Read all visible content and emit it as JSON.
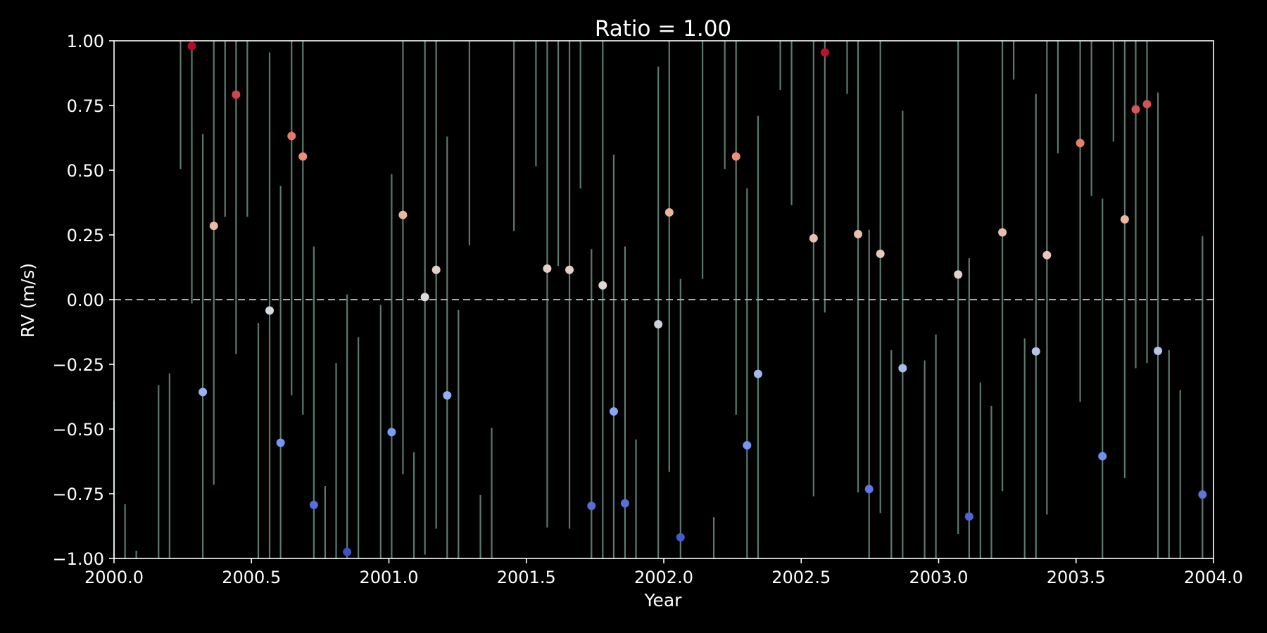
{
  "chart_data": {
    "type": "scatter",
    "title": "Ratio = 1.00",
    "xlabel": "Year",
    "ylabel": "RV (m/s)",
    "xlim": [
      2000.0,
      2004.0
    ],
    "ylim": [
      -1.0,
      1.0
    ],
    "xticks": [
      "2000.0",
      "2000.5",
      "2001.0",
      "2001.5",
      "2002.0",
      "2002.5",
      "2003.0",
      "2003.5",
      "2004.0"
    ],
    "yticks": [
      "−1.00",
      "−0.75",
      "−0.50",
      "−0.25",
      "0.00",
      "0.25",
      "0.50",
      "0.75",
      "1.00"
    ],
    "zero_line": true,
    "colors": {
      "background": "#000000",
      "axes": "#ffffff",
      "errorbar": "#5b7a6e",
      "zero_line": "#aaaaaa",
      "colormap": "coolwarm"
    },
    "points": [
      {
        "x": 2000.283,
        "y": 0.98
      },
      {
        "x": 2000.323,
        "y": -0.357
      },
      {
        "x": 2000.363,
        "y": 0.285
      },
      {
        "x": 2000.444,
        "y": 0.792
      },
      {
        "x": 2000.566,
        "y": -0.042
      },
      {
        "x": 2000.606,
        "y": -0.553
      },
      {
        "x": 2000.646,
        "y": 0.632
      },
      {
        "x": 2000.687,
        "y": 0.553
      },
      {
        "x": 2000.727,
        "y": -0.793
      },
      {
        "x": 2000.848,
        "y": -0.975
      },
      {
        "x": 2001.01,
        "y": -0.512
      },
      {
        "x": 2001.051,
        "y": 0.327
      },
      {
        "x": 2001.131,
        "y": 0.01
      },
      {
        "x": 2001.172,
        "y": 0.115
      },
      {
        "x": 2001.212,
        "y": -0.37
      },
      {
        "x": 2001.576,
        "y": 0.12
      },
      {
        "x": 2001.657,
        "y": 0.115
      },
      {
        "x": 2001.737,
        "y": -0.797
      },
      {
        "x": 2001.778,
        "y": 0.055
      },
      {
        "x": 2001.818,
        "y": -0.432
      },
      {
        "x": 2001.859,
        "y": -0.787
      },
      {
        "x": 2001.98,
        "y": -0.095
      },
      {
        "x": 2002.02,
        "y": 0.337
      },
      {
        "x": 2002.061,
        "y": -0.918
      },
      {
        "x": 2002.263,
        "y": 0.553
      },
      {
        "x": 2002.303,
        "y": -0.563
      },
      {
        "x": 2002.343,
        "y": -0.287
      },
      {
        "x": 2002.545,
        "y": 0.237
      },
      {
        "x": 2002.586,
        "y": 0.955
      },
      {
        "x": 2002.707,
        "y": 0.253
      },
      {
        "x": 2002.747,
        "y": -0.732
      },
      {
        "x": 2002.788,
        "y": 0.177
      },
      {
        "x": 2002.869,
        "y": -0.265
      },
      {
        "x": 2003.071,
        "y": 0.097
      },
      {
        "x": 2003.111,
        "y": -0.838
      },
      {
        "x": 2003.232,
        "y": 0.26
      },
      {
        "x": 2003.354,
        "y": -0.2
      },
      {
        "x": 2003.394,
        "y": 0.172
      },
      {
        "x": 2003.515,
        "y": 0.605
      },
      {
        "x": 2003.596,
        "y": -0.605
      },
      {
        "x": 2003.677,
        "y": 0.31
      },
      {
        "x": 2003.717,
        "y": 0.735
      },
      {
        "x": 2003.758,
        "y": 0.755
      },
      {
        "x": 2003.798,
        "y": -0.198
      },
      {
        "x": 2003.96,
        "y": -0.753
      }
    ],
    "errorbars": [
      {
        "x": 2000.0,
        "low": -1.0,
        "high": -0.39
      },
      {
        "x": 2000.04,
        "low": -1.0,
        "high": -0.79
      },
      {
        "x": 2000.081,
        "low": -1.0,
        "high": -0.97
      },
      {
        "x": 2000.162,
        "low": -1.0,
        "high": -0.33
      },
      {
        "x": 2000.202,
        "low": -1.0,
        "high": -0.285
      },
      {
        "x": 2000.242,
        "low": 0.505,
        "high": 1.0
      },
      {
        "x": 2000.283,
        "low": -0.015,
        "high": 1.0
      },
      {
        "x": 2000.323,
        "low": -1.0,
        "high": 0.64
      },
      {
        "x": 2000.363,
        "low": -0.715,
        "high": 1.0
      },
      {
        "x": 2000.404,
        "low": 0.32,
        "high": 1.0
      },
      {
        "x": 2000.444,
        "low": -0.21,
        "high": 1.0
      },
      {
        "x": 2000.485,
        "low": 0.32,
        "high": 1.0
      },
      {
        "x": 2000.525,
        "low": -1.0,
        "high": -0.09
      },
      {
        "x": 2000.566,
        "low": -1.0,
        "high": 0.955
      },
      {
        "x": 2000.606,
        "low": -1.0,
        "high": 0.44
      },
      {
        "x": 2000.646,
        "low": -0.37,
        "high": 1.0
      },
      {
        "x": 2000.687,
        "low": -0.445,
        "high": 1.0
      },
      {
        "x": 2000.727,
        "low": -1.0,
        "high": 0.205
      },
      {
        "x": 2000.768,
        "low": -1.0,
        "high": -0.72
      },
      {
        "x": 2000.808,
        "low": -1.0,
        "high": -0.245
      },
      {
        "x": 2000.848,
        "low": -1.0,
        "high": 0.02
      },
      {
        "x": 2000.889,
        "low": -1.0,
        "high": -0.145
      },
      {
        "x": 2000.97,
        "low": -1.0,
        "high": -0.02
      },
      {
        "x": 2001.01,
        "low": -1.0,
        "high": 0.485
      },
      {
        "x": 2001.051,
        "low": -0.675,
        "high": 1.0
      },
      {
        "x": 2001.091,
        "low": -1.0,
        "high": -0.59
      },
      {
        "x": 2001.131,
        "low": -0.985,
        "high": 1.0
      },
      {
        "x": 2001.172,
        "low": -0.885,
        "high": 1.0
      },
      {
        "x": 2001.212,
        "low": -1.0,
        "high": 0.63
      },
      {
        "x": 2001.253,
        "low": -1.0,
        "high": -0.04
      },
      {
        "x": 2001.293,
        "low": 0.21,
        "high": 1.0
      },
      {
        "x": 2001.333,
        "low": -1.0,
        "high": -0.755
      },
      {
        "x": 2001.374,
        "low": -1.0,
        "high": -0.495
      },
      {
        "x": 2001.455,
        "low": 0.265,
        "high": 1.0
      },
      {
        "x": 2001.535,
        "low": 0.515,
        "high": 1.0
      },
      {
        "x": 2001.576,
        "low": -0.88,
        "high": 1.0
      },
      {
        "x": 2001.616,
        "low": 0.13,
        "high": 1.0
      },
      {
        "x": 2001.657,
        "low": -0.885,
        "high": 1.0
      },
      {
        "x": 2001.697,
        "low": 0.43,
        "high": 1.0
      },
      {
        "x": 2001.737,
        "low": -1.0,
        "high": 0.195
      },
      {
        "x": 2001.778,
        "low": -1.0,
        "high": 1.0
      },
      {
        "x": 2001.818,
        "low": -1.0,
        "high": 0.56
      },
      {
        "x": 2001.859,
        "low": -1.0,
        "high": 0.205
      },
      {
        "x": 2001.899,
        "low": -1.0,
        "high": -0.54
      },
      {
        "x": 2001.98,
        "low": -1.0,
        "high": 0.9
      },
      {
        "x": 2002.02,
        "low": -0.665,
        "high": 1.0
      },
      {
        "x": 2002.061,
        "low": -1.0,
        "high": 0.08
      },
      {
        "x": 2002.141,
        "low": 0.08,
        "high": 1.0
      },
      {
        "x": 2002.182,
        "low": -1.0,
        "high": -0.84
      },
      {
        "x": 2002.222,
        "low": 0.505,
        "high": 1.0
      },
      {
        "x": 2002.263,
        "low": -0.445,
        "high": 1.0
      },
      {
        "x": 2002.303,
        "low": -1.0,
        "high": 0.43
      },
      {
        "x": 2002.343,
        "low": -1.0,
        "high": 0.71
      },
      {
        "x": 2002.424,
        "low": 0.81,
        "high": 1.0
      },
      {
        "x": 2002.465,
        "low": 0.365,
        "high": 1.0
      },
      {
        "x": 2002.545,
        "low": -0.76,
        "high": 1.0
      },
      {
        "x": 2002.586,
        "low": -0.05,
        "high": 1.0
      },
      {
        "x": 2002.667,
        "low": 0.795,
        "high": 1.0
      },
      {
        "x": 2002.707,
        "low": -0.745,
        "high": 1.0
      },
      {
        "x": 2002.747,
        "low": -1.0,
        "high": 0.27
      },
      {
        "x": 2002.788,
        "low": -0.825,
        "high": 1.0
      },
      {
        "x": 2002.828,
        "low": -1.0,
        "high": -0.195
      },
      {
        "x": 2002.869,
        "low": -1.0,
        "high": 0.73
      },
      {
        "x": 2002.949,
        "low": -1.0,
        "high": -0.235
      },
      {
        "x": 2002.99,
        "low": -1.0,
        "high": -0.135
      },
      {
        "x": 2003.071,
        "low": -0.905,
        "high": 1.0
      },
      {
        "x": 2003.111,
        "low": -1.0,
        "high": 0.16
      },
      {
        "x": 2003.152,
        "low": -1.0,
        "high": -0.32
      },
      {
        "x": 2003.192,
        "low": -1.0,
        "high": -0.41
      },
      {
        "x": 2003.232,
        "low": -0.74,
        "high": 1.0
      },
      {
        "x": 2003.273,
        "low": 0.85,
        "high": 1.0
      },
      {
        "x": 2003.313,
        "low": -1.0,
        "high": -0.15
      },
      {
        "x": 2003.354,
        "low": -1.0,
        "high": 0.795
      },
      {
        "x": 2003.394,
        "low": -0.83,
        "high": 1.0
      },
      {
        "x": 2003.434,
        "low": 0.565,
        "high": 1.0
      },
      {
        "x": 2003.515,
        "low": -0.395,
        "high": 1.0
      },
      {
        "x": 2003.556,
        "low": 0.4,
        "high": 1.0
      },
      {
        "x": 2003.596,
        "low": -1.0,
        "high": 0.39
      },
      {
        "x": 2003.636,
        "low": 0.61,
        "high": 1.0
      },
      {
        "x": 2003.677,
        "low": -0.69,
        "high": 1.0
      },
      {
        "x": 2003.717,
        "low": -0.265,
        "high": 1.0
      },
      {
        "x": 2003.758,
        "low": -0.245,
        "high": 1.0
      },
      {
        "x": 2003.798,
        "low": -1.0,
        "high": 0.8
      },
      {
        "x": 2003.838,
        "low": -1.0,
        "high": -0.195
      },
      {
        "x": 2003.879,
        "low": -1.0,
        "high": -0.35
      },
      {
        "x": 2003.96,
        "low": -1.0,
        "high": 0.245
      }
    ]
  }
}
